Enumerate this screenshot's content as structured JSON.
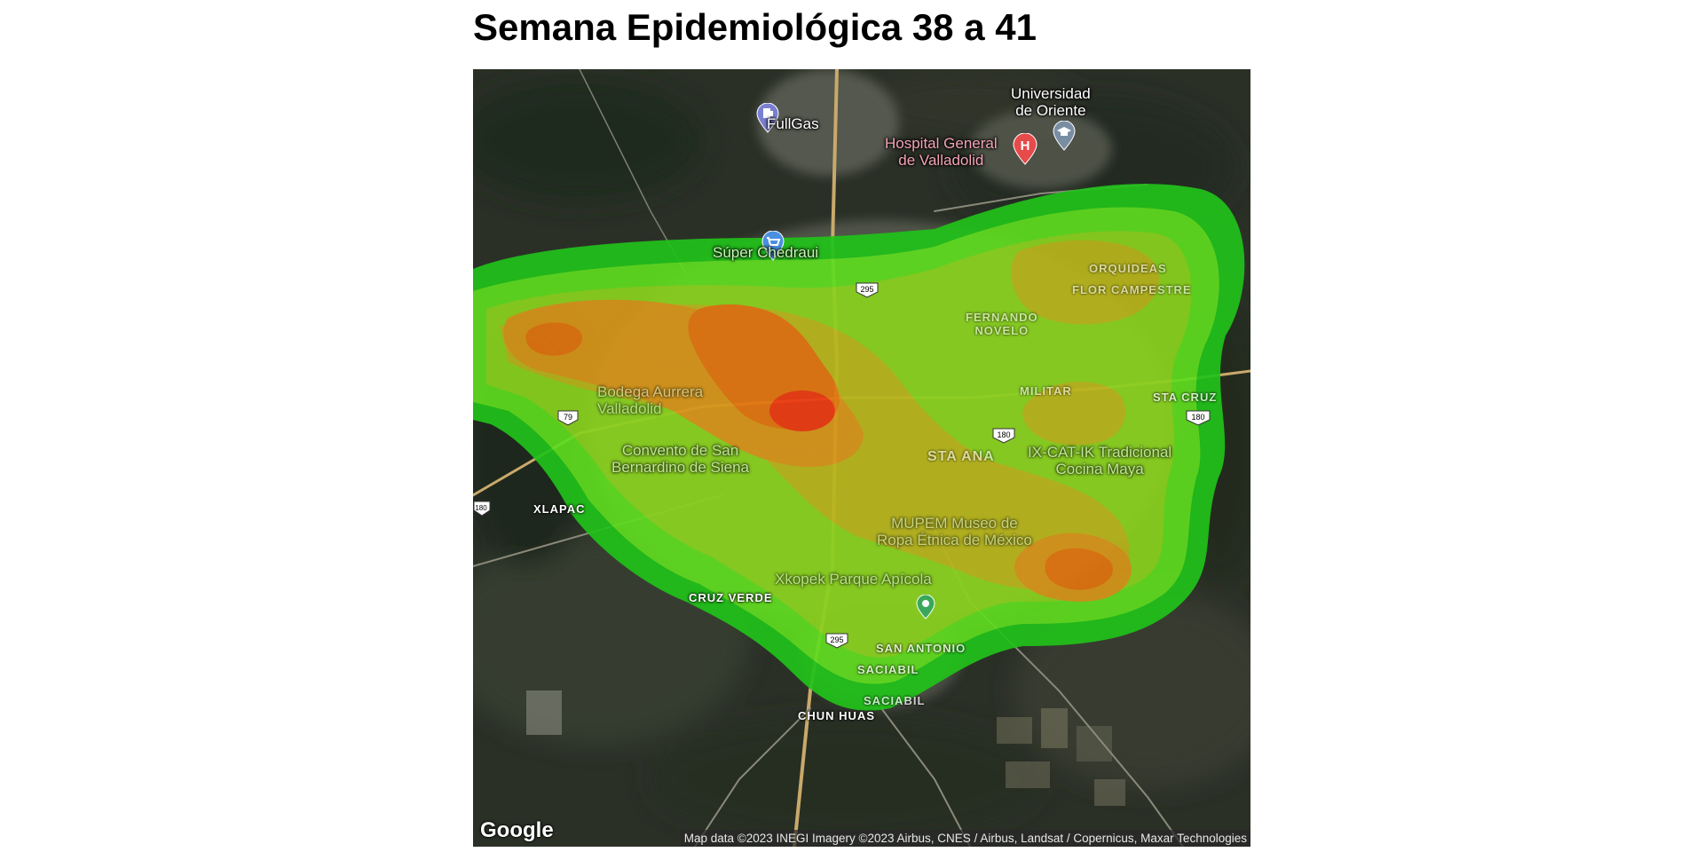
{
  "title": "Semana Epidemiológica 38 a 41",
  "map": {
    "poi": {
      "fullgas": "FullGas",
      "universidad_l1": "Universidad",
      "universidad_l2": "de Oriente",
      "hospital_l1": "Hospital General",
      "hospital_l2": "de Valladolid",
      "chedraui": "Súper Chedraui",
      "bodega_l1": "Bodega Aurrera",
      "bodega_l2": "Valladolid",
      "convento_l1": "Convento de San",
      "convento_l2": "Bernardino de Siena",
      "ixcatik_l1": "IX-CAT-IK Tradicional",
      "ixcatik_l2": "Cocina Maya",
      "mupem_l1": "MUPEM Museo de",
      "mupem_l2": "Ropa Étnica de México",
      "xkopek": "Xkopek Parque Apícola"
    },
    "areas": {
      "orquideas": "ORQUIDEAS",
      "flor_campestre": "FLOR CAMPESTRE",
      "fernando_l1": "FERNANDO",
      "fernando_l2": "NOVELO",
      "militar": "MILITAR",
      "sta_cruz": "STA CRUZ",
      "sta_ana": "STA ANA",
      "xlapac": "XLAPAC",
      "cruz_verde": "CRUZ VERDE",
      "san_antonio": "SAN ANTONIO",
      "saciabil_1": "SACIABIL",
      "saciabil_2": "SACIABIL",
      "chun_huas": "CHUN HUAS"
    },
    "road_shields": {
      "r295_top": "295",
      "r295_bottom": "295",
      "r79": "79",
      "r180_right": "180",
      "r180_left": "180",
      "r180_mid": "180"
    },
    "logo": "Google",
    "attribution": "Map data ©2023 INEGI Imagery ©2023 Airbus, CNES / Airbus, Landsat / Copernicus, Maxar Technologies",
    "density_colors": {
      "level1": "#21c21a",
      "level2": "#5fdc1f",
      "level3": "#8ad21e",
      "level4": "#b9b61c",
      "level5": "#d8961a",
      "level6": "#e2750f",
      "level7": "#ec3a12"
    }
  }
}
